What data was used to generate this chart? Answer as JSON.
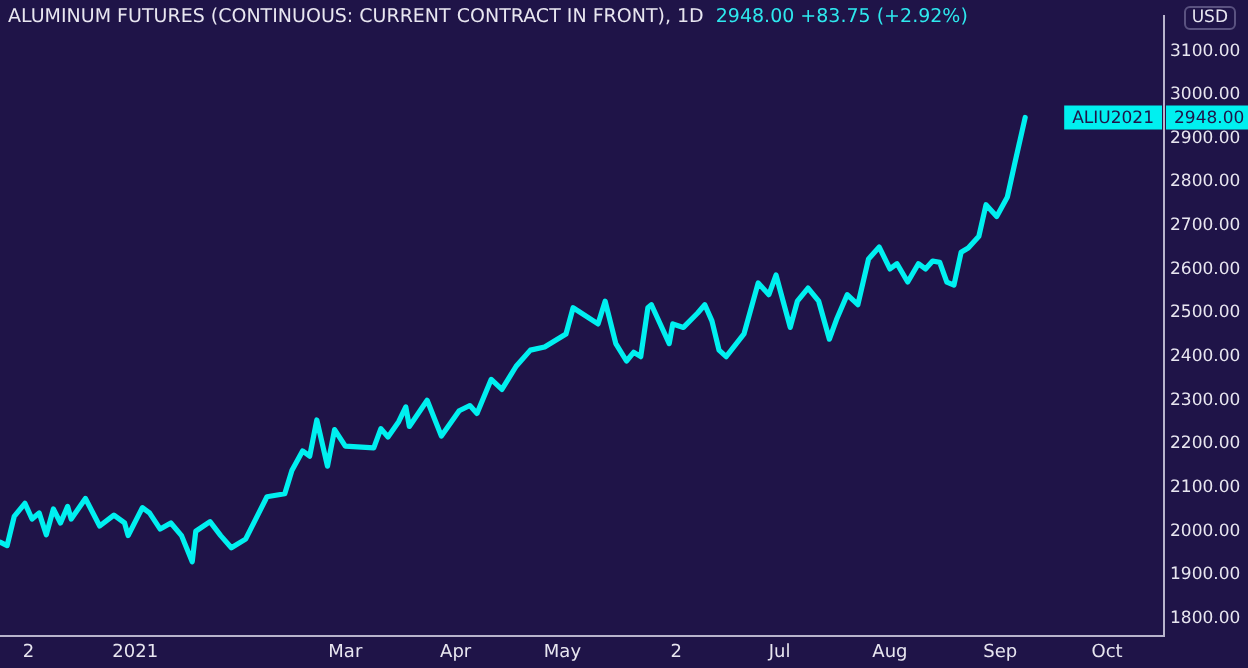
{
  "chart_data": {
    "type": "line",
    "title": "ALUMINUM FUTURES (CONTINUOUS: CURRENT CONTRACT IN FRONT), 1D",
    "subtitle": "2948.00  +83.75 (+2.92%)",
    "ylabel": "USD",
    "annotations": [
      "ALIU2021",
      "2948.00"
    ],
    "xlim": [
      "2020-11-24",
      "2021-10-17"
    ],
    "xticks": [
      {
        "value": "2020-12-02",
        "label": "2"
      },
      {
        "value": "2021-01-01",
        "label": "2021"
      },
      {
        "value": "2021-03-01",
        "label": "Mar"
      },
      {
        "value": "2021-04-01",
        "label": "Apr"
      },
      {
        "value": "2021-05-01",
        "label": "May"
      },
      {
        "value": "2021-06-02",
        "label": "2"
      },
      {
        "value": "2021-07-01",
        "label": "Jul"
      },
      {
        "value": "2021-08-01",
        "label": "Aug"
      },
      {
        "value": "2021-09-01",
        "label": "Sep"
      },
      {
        "value": "2021-10-01",
        "label": "Oct"
      }
    ],
    "ylim": [
      1760,
      3180
    ],
    "yticks": [
      {
        "value": 1800,
        "label": "1800.00"
      },
      {
        "value": 1900,
        "label": "1900.00"
      },
      {
        "value": 2000,
        "label": "2000.00"
      },
      {
        "value": 2100,
        "label": "2100.00"
      },
      {
        "value": 2200,
        "label": "2200.00"
      },
      {
        "value": 2300,
        "label": "2300.00"
      },
      {
        "value": 2400,
        "label": "2400.00"
      },
      {
        "value": 2500,
        "label": "2500.00"
      },
      {
        "value": 2600,
        "label": "2600.00"
      },
      {
        "value": 2700,
        "label": "2700.00"
      },
      {
        "value": 2800,
        "label": "2800.00"
      },
      {
        "value": 2900,
        "label": "2900.00"
      },
      {
        "value": 3000,
        "label": "3000.00"
      },
      {
        "value": 3100,
        "label": "3100.00"
      }
    ],
    "grid": false,
    "legend": false,
    "series": [
      {
        "color": "#00f0f0",
        "x": [
          "2020-11-24",
          "2020-11-26",
          "2020-11-28",
          "2020-12-01",
          "2020-12-03",
          "2020-12-05",
          "2020-12-07",
          "2020-12-09",
          "2020-12-11",
          "2020-12-13",
          "2020-12-14",
          "2020-12-18",
          "2020-12-22",
          "2020-12-26",
          "2020-12-29",
          "2020-12-30",
          "2021-01-03",
          "2021-01-05",
          "2021-01-08",
          "2021-01-11",
          "2021-01-14",
          "2021-01-17",
          "2021-01-18",
          "2021-01-22",
          "2021-01-25",
          "2021-01-28",
          "2021-02-01",
          "2021-02-07",
          "2021-02-12",
          "2021-02-14",
          "2021-02-17",
          "2021-02-19",
          "2021-02-21",
          "2021-02-24",
          "2021-02-26",
          "2021-03-01",
          "2021-03-09",
          "2021-03-11",
          "2021-03-13",
          "2021-03-16",
          "2021-03-18",
          "2021-03-19",
          "2021-03-24",
          "2021-03-28",
          "2021-04-02",
          "2021-04-05",
          "2021-04-07",
          "2021-04-11",
          "2021-04-14",
          "2021-04-18",
          "2021-04-22",
          "2021-04-26",
          "2021-05-02",
          "2021-05-04",
          "2021-05-11",
          "2021-05-13",
          "2021-05-16",
          "2021-05-19",
          "2021-05-21",
          "2021-05-23",
          "2021-05-25",
          "2021-05-26",
          "2021-05-31",
          "2021-06-01",
          "2021-06-04",
          "2021-06-08",
          "2021-06-10",
          "2021-06-12",
          "2021-06-14",
          "2021-06-16",
          "2021-06-21",
          "2021-06-25",
          "2021-06-28",
          "2021-06-30",
          "2021-07-04",
          "2021-07-06",
          "2021-07-09",
          "2021-07-12",
          "2021-07-15",
          "2021-07-17",
          "2021-07-20",
          "2021-07-23",
          "2021-07-26",
          "2021-07-29",
          "2021-08-01",
          "2021-08-03",
          "2021-08-06",
          "2021-08-09",
          "2021-08-11",
          "2021-08-13",
          "2021-08-15",
          "2021-08-17",
          "2021-08-19",
          "2021-08-21",
          "2021-08-23",
          "2021-08-26",
          "2021-08-28",
          "2021-08-31",
          "2021-09-03",
          "2021-09-05",
          "2021-09-08"
        ],
        "values": [
          1975,
          1967,
          2034,
          2064,
          2028,
          2042,
          1992,
          2051,
          2019,
          2057,
          2028,
          2075,
          2012,
          2037,
          2019,
          1990,
          2054,
          2042,
          2005,
          2019,
          1990,
          1930,
          2000,
          2022,
          1990,
          1962,
          1982,
          2079,
          2086,
          2139,
          2184,
          2172,
          2255,
          2149,
          2233,
          2195,
          2191,
          2235,
          2216,
          2251,
          2285,
          2240,
          2300,
          2218,
          2276,
          2288,
          2270,
          2348,
          2325,
          2378,
          2415,
          2422,
          2452,
          2512,
          2475,
          2527,
          2430,
          2390,
          2410,
          2400,
          2512,
          2519,
          2430,
          2475,
          2467,
          2500,
          2519,
          2482,
          2415,
          2400,
          2452,
          2569,
          2542,
          2587,
          2467,
          2527,
          2557,
          2527,
          2440,
          2485,
          2542,
          2519,
          2624,
          2651,
          2601,
          2613,
          2571,
          2613,
          2601,
          2619,
          2616,
          2571,
          2564,
          2639,
          2649,
          2676,
          2748,
          2721,
          2766,
          2840,
          2948
        ]
      }
    ]
  }
}
